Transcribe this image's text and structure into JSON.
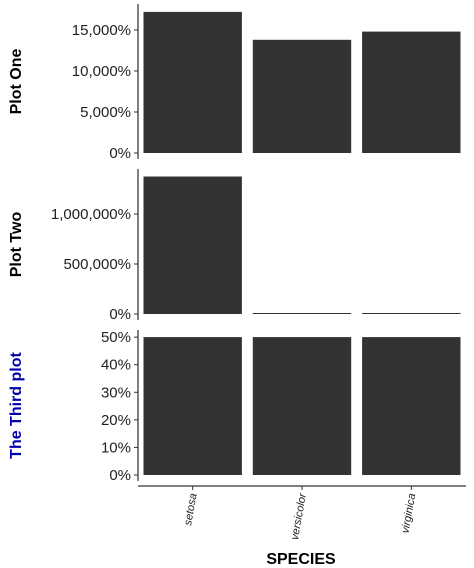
{
  "chart_data": [
    {
      "type": "bar",
      "ylabel": "Plot One",
      "ylabel_color": "#000000",
      "categories": [
        "setosa",
        "versicolor",
        "virginica"
      ],
      "values": [
        17200,
        13800,
        14800
      ],
      "ylim": [
        0,
        17800
      ],
      "yticks": [
        0,
        5000,
        10000,
        15000
      ],
      "ytick_labels": [
        "0%",
        "5,000%",
        "10,000%",
        "15,000%"
      ]
    },
    {
      "type": "bar",
      "ylabel": "Plot Two",
      "ylabel_color": "#000000",
      "categories": [
        "setosa",
        "versicolor",
        "virginica"
      ],
      "values": [
        1375000,
        1000,
        1000
      ],
      "ylim": [
        0,
        1420000
      ],
      "yticks": [
        0,
        500000,
        1000000
      ],
      "ytick_labels": [
        "0%",
        "500,000%",
        "1,000,000%"
      ]
    },
    {
      "type": "bar",
      "ylabel": "The Third plot",
      "ylabel_color": "#0000aa",
      "categories": [
        "setosa",
        "versicolor",
        "virginica"
      ],
      "values": [
        50,
        50,
        50
      ],
      "ylim": [
        0,
        51.5
      ],
      "yticks": [
        0,
        10,
        20,
        30,
        40,
        50
      ],
      "ytick_labels": [
        "0%",
        "10%",
        "20%",
        "30%",
        "40%",
        "50%"
      ]
    }
  ],
  "shared": {
    "xlabel": "SPECIES",
    "categories": [
      "setosa",
      "versicolor",
      "virginica"
    ],
    "bar_color": "#333333"
  }
}
